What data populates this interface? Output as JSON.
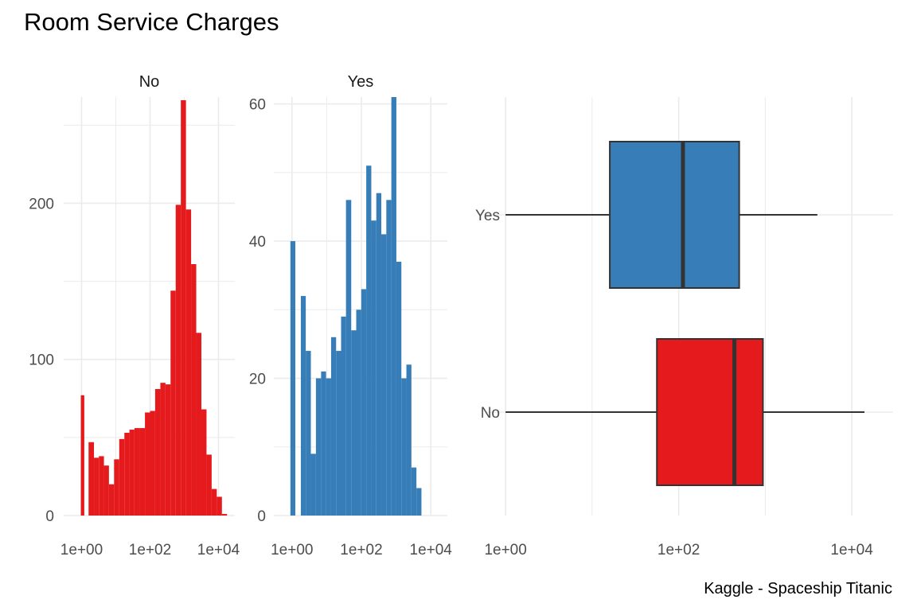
{
  "title": "Room Service Charges",
  "caption": "Kaggle - Spaceship Titanic",
  "colors": {
    "no": "#E41A1C",
    "yes": "#377EB8",
    "grid": "#EBEBEB",
    "outline": "#333333",
    "text": "#4D4D4D"
  },
  "chart_data": [
    {
      "type": "bar",
      "subtype": "histogram",
      "facet": "No",
      "x_scale": "log10",
      "xticks": [
        "1e+00",
        "1e+02",
        "1e+04"
      ],
      "yticks": [
        "0",
        "100",
        "200"
      ],
      "ylim": [
        0,
        268
      ],
      "bins": [
        {
          "from": 0.95,
          "to": 1.2,
          "count": 77
        },
        {
          "from": 1.6,
          "to": 2.3,
          "count": 47
        },
        {
          "from": 2.3,
          "to": 3.2,
          "count": 37
        },
        {
          "from": 3.2,
          "to": 4.5,
          "count": 38
        },
        {
          "from": 4.5,
          "to": 6.3,
          "count": 32
        },
        {
          "from": 6.3,
          "to": 8.9,
          "count": 20
        },
        {
          "from": 8.9,
          "to": 12.6,
          "count": 36
        },
        {
          "from": 12.6,
          "to": 17.8,
          "count": 49
        },
        {
          "from": 17.8,
          "to": 25,
          "count": 53
        },
        {
          "from": 25,
          "to": 35,
          "count": 55
        },
        {
          "from": 35,
          "to": 50,
          "count": 56
        },
        {
          "from": 50,
          "to": 71,
          "count": 56
        },
        {
          "from": 71,
          "to": 100,
          "count": 66
        },
        {
          "from": 100,
          "to": 141,
          "count": 67
        },
        {
          "from": 141,
          "to": 200,
          "count": 81
        },
        {
          "from": 200,
          "to": 282,
          "count": 85
        },
        {
          "from": 282,
          "to": 398,
          "count": 84
        },
        {
          "from": 398,
          "to": 562,
          "count": 144
        },
        {
          "from": 562,
          "to": 794,
          "count": 199
        },
        {
          "from": 794,
          "to": 1122,
          "count": 266
        },
        {
          "from": 1122,
          "to": 1585,
          "count": 196
        },
        {
          "from": 1585,
          "to": 2239,
          "count": 161
        },
        {
          "from": 2239,
          "to": 3162,
          "count": 117
        },
        {
          "from": 3162,
          "to": 4467,
          "count": 68
        },
        {
          "from": 4467,
          "to": 6310,
          "count": 39
        },
        {
          "from": 6310,
          "to": 8913,
          "count": 17
        },
        {
          "from": 8913,
          "to": 12589,
          "count": 12
        },
        {
          "from": 12589,
          "to": 17783,
          "count": 1
        }
      ]
    },
    {
      "type": "bar",
      "subtype": "histogram",
      "facet": "Yes",
      "x_scale": "log10",
      "xticks": [
        "1e+00",
        "1e+02",
        "1e+04"
      ],
      "yticks": [
        "0",
        "20",
        "40",
        "60"
      ],
      "ylim": [
        0,
        61
      ],
      "bins": [
        {
          "from": 0.9,
          "to": 1.25,
          "count": 40
        },
        {
          "from": 1.8,
          "to": 2.5,
          "count": 32
        },
        {
          "from": 2.5,
          "to": 3.5,
          "count": 24
        },
        {
          "from": 3.5,
          "to": 4.9,
          "count": 9
        },
        {
          "from": 4.9,
          "to": 6.9,
          "count": 20
        },
        {
          "from": 6.9,
          "to": 9.6,
          "count": 21
        },
        {
          "from": 9.6,
          "to": 13.4,
          "count": 20
        },
        {
          "from": 13.4,
          "to": 18.7,
          "count": 26
        },
        {
          "from": 18.7,
          "to": 26,
          "count": 24
        },
        {
          "from": 26,
          "to": 36,
          "count": 29
        },
        {
          "from": 36,
          "to": 51,
          "count": 46
        },
        {
          "from": 51,
          "to": 71,
          "count": 27
        },
        {
          "from": 71,
          "to": 99,
          "count": 30
        },
        {
          "from": 99,
          "to": 138,
          "count": 33
        },
        {
          "from": 138,
          "to": 193,
          "count": 51
        },
        {
          "from": 193,
          "to": 269,
          "count": 43
        },
        {
          "from": 269,
          "to": 375,
          "count": 47
        },
        {
          "from": 375,
          "to": 523,
          "count": 41
        },
        {
          "from": 523,
          "to": 730,
          "count": 46
        },
        {
          "from": 730,
          "to": 1018,
          "count": 61
        },
        {
          "from": 1018,
          "to": 1420,
          "count": 37
        },
        {
          "from": 1420,
          "to": 1981,
          "count": 20
        },
        {
          "from": 1981,
          "to": 2763,
          "count": 22
        },
        {
          "from": 2763,
          "to": 3855,
          "count": 7
        },
        {
          "from": 3855,
          "to": 5378,
          "count": 4
        }
      ]
    },
    {
      "type": "box",
      "orientation": "horizontal",
      "x_scale": "log10",
      "xticks": [
        "1e+00",
        "1e+02",
        "1e+04"
      ],
      "categories": [
        "Yes",
        "No"
      ],
      "boxes": [
        {
          "category": "Yes",
          "whisker_low": 1,
          "q1": 16,
          "median": 112,
          "q3": 500,
          "whisker_high": 4000
        },
        {
          "category": "No",
          "whisker_low": 1,
          "q1": 56,
          "median": 440,
          "q3": 940,
          "whisker_high": 14000
        }
      ]
    }
  ]
}
